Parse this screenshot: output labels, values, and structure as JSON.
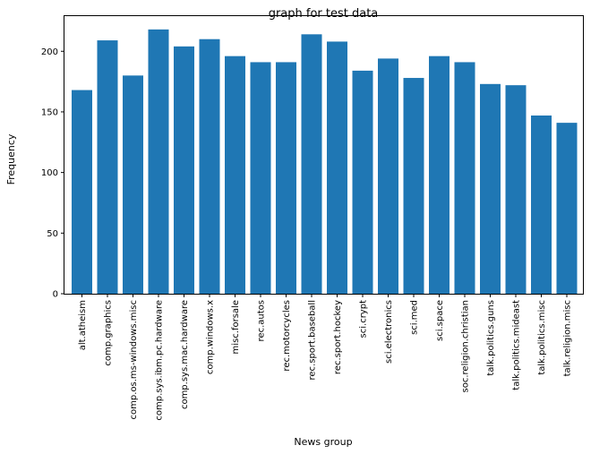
{
  "chart_data": {
    "type": "bar",
    "title": "graph for test data",
    "xlabel": "News group",
    "ylabel": "Frequency",
    "ylim": [
      0,
      229
    ],
    "yticks": [
      0,
      50,
      100,
      150,
      200
    ],
    "grid": false,
    "bar_color": "#1f77b4",
    "categories": [
      "alt.atheism",
      "comp.graphics",
      "comp.os.ms-windows.misc",
      "comp.sys.ibm.pc.hardware",
      "comp.sys.mac.hardware",
      "comp.windows.x",
      "misc.forsale",
      "rec.autos",
      "rec.motorcycles",
      "rec.sport.baseball",
      "rec.sport.hockey",
      "sci.crypt",
      "sci.electronics",
      "sci.med",
      "sci.space",
      "soc.religion.christian",
      "talk.politics.guns",
      "talk.politics.mideast",
      "talk.politics.misc",
      "talk.religion.misc"
    ],
    "values": [
      168,
      209,
      180,
      218,
      204,
      210,
      196,
      191,
      191,
      214,
      208,
      184,
      194,
      178,
      196,
      191,
      173,
      172,
      147,
      141
    ]
  }
}
